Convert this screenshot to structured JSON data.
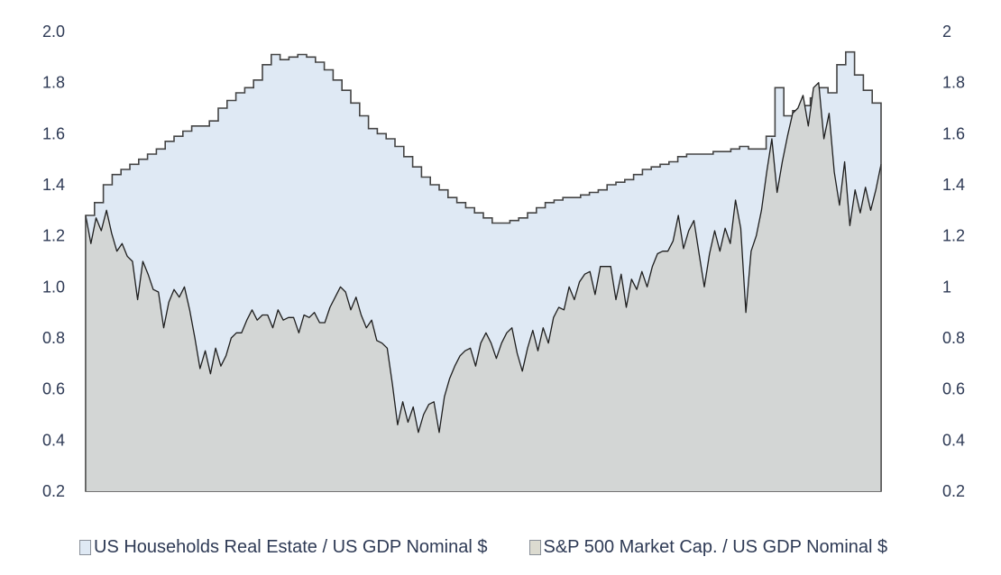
{
  "chart_data": {
    "type": "area",
    "title": "",
    "xlabel": "",
    "ylabel": "",
    "ylim": [
      0.2,
      2.0
    ],
    "y2lim": [
      0.2,
      2.0
    ],
    "grid": false,
    "legend_position": "bottom",
    "left_ticks": [
      "2.0",
      "1.8",
      "1.6",
      "1.4",
      "1.2",
      "1.0",
      "0.8",
      "0.6",
      "0.4",
      "0.2"
    ],
    "right_ticks": [
      "2",
      "1.8",
      "1.6",
      "1.4",
      "1.2",
      "1",
      "0.8",
      "0.6",
      "0.4",
      "0.2"
    ],
    "tick_values": [
      2.0,
      1.8,
      1.6,
      1.4,
      1.2,
      1.0,
      0.8,
      0.6,
      0.4,
      0.2
    ],
    "series": [
      {
        "name": "US Households Real Estate / US GDP Nominal $",
        "style": "step-area",
        "fill": "#dfe9f4",
        "stroke": "#444444",
        "values": [
          1.28,
          1.33,
          1.4,
          1.44,
          1.46,
          1.48,
          1.5,
          1.52,
          1.54,
          1.57,
          1.59,
          1.61,
          1.63,
          1.63,
          1.65,
          1.7,
          1.73,
          1.76,
          1.78,
          1.81,
          1.87,
          1.91,
          1.89,
          1.9,
          1.91,
          1.9,
          1.88,
          1.85,
          1.81,
          1.77,
          1.72,
          1.67,
          1.62,
          1.6,
          1.58,
          1.55,
          1.51,
          1.47,
          1.43,
          1.4,
          1.38,
          1.35,
          1.33,
          1.31,
          1.29,
          1.27,
          1.25,
          1.25,
          1.26,
          1.27,
          1.29,
          1.31,
          1.33,
          1.34,
          1.35,
          1.35,
          1.36,
          1.37,
          1.38,
          1.4,
          1.41,
          1.42,
          1.44,
          1.46,
          1.47,
          1.48,
          1.49,
          1.51,
          1.52,
          1.52,
          1.52,
          1.53,
          1.53,
          1.54,
          1.55,
          1.54,
          1.54,
          1.59,
          1.78,
          1.67,
          1.69,
          1.71,
          1.74,
          1.78,
          1.76,
          1.87,
          1.92,
          1.83,
          1.77,
          1.72
        ]
      },
      {
        "name": "S&P 500 Market Cap. / US GDP Nominal $",
        "style": "line-area",
        "fill": "#d3d6d5",
        "stroke": "#1e1e1e",
        "values": [
          1.28,
          1.17,
          1.27,
          1.22,
          1.3,
          1.21,
          1.14,
          1.17,
          1.12,
          1.1,
          0.95,
          1.1,
          1.05,
          0.99,
          0.98,
          0.84,
          0.94,
          0.99,
          0.96,
          1.0,
          0.91,
          0.8,
          0.68,
          0.75,
          0.66,
          0.76,
          0.69,
          0.73,
          0.8,
          0.82,
          0.82,
          0.87,
          0.91,
          0.87,
          0.89,
          0.89,
          0.84,
          0.91,
          0.87,
          0.88,
          0.88,
          0.82,
          0.89,
          0.88,
          0.9,
          0.86,
          0.86,
          0.92,
          0.96,
          1.0,
          0.98,
          0.91,
          0.96,
          0.89,
          0.84,
          0.87,
          0.79,
          0.78,
          0.76,
          0.62,
          0.46,
          0.55,
          0.47,
          0.53,
          0.43,
          0.5,
          0.54,
          0.55,
          0.43,
          0.57,
          0.64,
          0.69,
          0.73,
          0.75,
          0.76,
          0.69,
          0.78,
          0.82,
          0.78,
          0.72,
          0.78,
          0.82,
          0.84,
          0.74,
          0.67,
          0.76,
          0.83,
          0.75,
          0.84,
          0.78,
          0.88,
          0.92,
          0.91,
          1.0,
          0.95,
          1.02,
          1.05,
          1.06,
          0.97,
          1.08,
          1.08,
          1.08,
          0.95,
          1.05,
          0.92,
          1.03,
          0.99,
          1.06,
          1.0,
          1.08,
          1.13,
          1.14,
          1.14,
          1.18,
          1.28,
          1.15,
          1.22,
          1.26,
          1.13,
          1.0,
          1.13,
          1.22,
          1.14,
          1.23,
          1.17,
          1.34,
          1.23,
          0.9,
          1.14,
          1.2,
          1.3,
          1.45,
          1.58,
          1.37,
          1.49,
          1.59,
          1.68,
          1.7,
          1.75,
          1.63,
          1.78,
          1.8,
          1.58,
          1.68,
          1.45,
          1.32,
          1.49,
          1.24,
          1.38,
          1.29,
          1.39,
          1.3,
          1.38,
          1.48
        ]
      }
    ]
  }
}
